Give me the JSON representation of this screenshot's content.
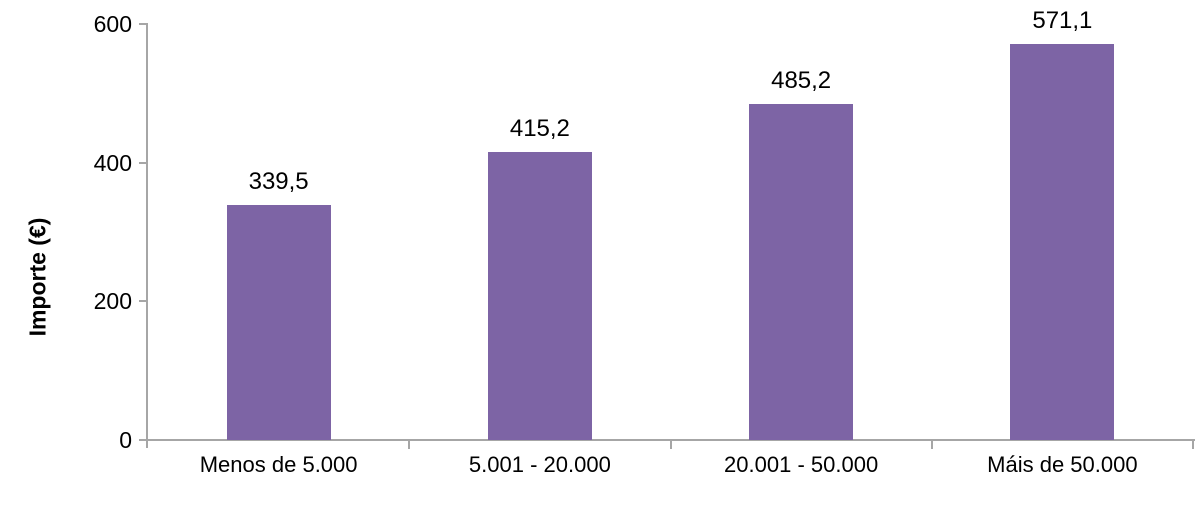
{
  "chart_data": {
    "type": "bar",
    "title": "",
    "xlabel": "",
    "ylabel": "Importe (€)",
    "categories": [
      "Menos de 5.000",
      "5.001 - 20.000",
      "20.001 - 50.000",
      "Máis de 50.000"
    ],
    "values": [
      339.5,
      415.2,
      485.2,
      571.1
    ],
    "value_labels": [
      "339,5",
      "415,2",
      "485,2",
      "571,1"
    ],
    "ylim": [
      0,
      600
    ],
    "yticks": [
      0,
      200,
      400,
      600
    ],
    "ytick_labels": [
      "0",
      "200",
      "400",
      "600"
    ],
    "grid": "off",
    "legend": "none",
    "bar_color": "#7D64A5",
    "axis_color": "#A6A6A6",
    "text_color": "#000000"
  }
}
